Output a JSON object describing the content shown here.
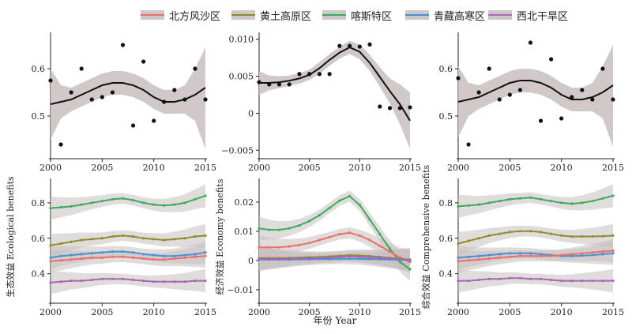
{
  "legend": {
    "items": [
      {
        "label": "北方风沙区",
        "color": "#e8706a"
      },
      {
        "label": "黄土高原区",
        "color": "#8e8d2b"
      },
      {
        "label": "喀斯特区",
        "color": "#3daa5c"
      },
      {
        "label": "青藏高寒区",
        "color": "#4a8fd3"
      },
      {
        "label": "西北干旱区",
        "color": "#a866b4"
      }
    ]
  },
  "labels": {
    "y_ecology": "生态效益 Ecological benefits",
    "y_economy": "经济效益 Economy benefits",
    "y_comprehensive": "综合效益 Comprehensive benefits",
    "x_year": "年份 Year"
  },
  "chart_data": [
    {
      "id": "ecology-overall",
      "type": "scatter",
      "xlim": [
        2000,
        2015
      ],
      "ylim": [
        0.42,
        0.67
      ],
      "xticks": [
        2000,
        2005,
        2010,
        2015
      ],
      "yticks": [
        0.5,
        0.6
      ],
      "points": {
        "x": [
          2000,
          2001,
          2002,
          2003,
          2004,
          2005,
          2006,
          2007,
          2008,
          2009,
          2010,
          2011,
          2012,
          2013,
          2014,
          2015
        ],
        "y": [
          0.575,
          0.44,
          0.55,
          0.6,
          0.535,
          0.54,
          0.55,
          0.65,
          0.48,
          0.615,
          0.49,
          0.53,
          0.555,
          0.535,
          0.6,
          0.535
        ]
      },
      "fit": {
        "x": [
          2000,
          2001,
          2002,
          2003,
          2004,
          2005,
          2006,
          2007,
          2008,
          2009,
          2010,
          2011,
          2012,
          2013,
          2014,
          2015
        ],
        "y": [
          0.525,
          0.53,
          0.535,
          0.545,
          0.555,
          0.565,
          0.57,
          0.57,
          0.565,
          0.555,
          0.54,
          0.53,
          0.53,
          0.535,
          0.545,
          0.56
        ],
        "lower": [
          0.45,
          0.495,
          0.51,
          0.52,
          0.53,
          0.54,
          0.545,
          0.545,
          0.54,
          0.53,
          0.515,
          0.505,
          0.505,
          0.505,
          0.49,
          0.43
        ],
        "upper": [
          0.6,
          0.565,
          0.56,
          0.57,
          0.58,
          0.59,
          0.595,
          0.595,
          0.59,
          0.58,
          0.565,
          0.555,
          0.555,
          0.565,
          0.6,
          0.645
        ]
      }
    },
    {
      "id": "economy-overall",
      "type": "scatter",
      "xlim": [
        2000,
        2015
      ],
      "ylim": [
        -0.0055,
        0.0105
      ],
      "xticks": [
        2000,
        2005,
        2010,
        2015
      ],
      "yticks": [
        -0.005,
        0,
        0.005,
        0.01
      ],
      "ytick_labels": [
        "−0.005",
        "0",
        "0.005",
        "0.010"
      ],
      "points": {
        "x": [
          2000,
          2001,
          2002,
          2003,
          2004,
          2005,
          2006,
          2007,
          2008,
          2009,
          2010,
          2011,
          2012,
          2013,
          2014,
          2015
        ],
        "y": [
          0.0042,
          0.0039,
          0.0039,
          0.0039,
          0.0053,
          0.0053,
          0.0053,
          0.0053,
          0.0091,
          0.0091,
          0.009,
          0.0093,
          0.0009,
          0.0007,
          0.0007,
          0.0008
        ]
      },
      "fit": {
        "x": [
          2000,
          2001,
          2002,
          2003,
          2004,
          2005,
          2006,
          2007,
          2008,
          2009,
          2010,
          2011,
          2012,
          2013,
          2014,
          2015
        ],
        "y": [
          0.0041,
          0.0041,
          0.0042,
          0.0044,
          0.0047,
          0.0052,
          0.0061,
          0.0072,
          0.0082,
          0.0089,
          0.0083,
          0.0068,
          0.0049,
          0.003,
          0.0012,
          -0.001
        ],
        "lower": [
          0.0025,
          0.0031,
          0.0034,
          0.0037,
          0.004,
          0.0045,
          0.0053,
          0.0064,
          0.0074,
          0.008,
          0.0073,
          0.0057,
          0.0036,
          0.0013,
          -0.0015,
          -0.0048
        ],
        "upper": [
          0.0057,
          0.0051,
          0.005,
          0.0051,
          0.0054,
          0.0059,
          0.0069,
          0.008,
          0.009,
          0.0098,
          0.0093,
          0.0079,
          0.0062,
          0.0047,
          0.0039,
          0.0028
        ]
      }
    },
    {
      "id": "comprehensive-overall",
      "type": "scatter",
      "xlim": [
        2000,
        2015
      ],
      "ylim": [
        0.42,
        0.67
      ],
      "xticks": [
        2000,
        2005,
        2010,
        2015
      ],
      "yticks": [
        0.5,
        0.6
      ],
      "points": {
        "x": [
          2000,
          2001,
          2002,
          2003,
          2004,
          2005,
          2006,
          2007,
          2008,
          2009,
          2010,
          2011,
          2012,
          2013,
          2014,
          2015
        ],
        "y": [
          0.58,
          0.44,
          0.55,
          0.6,
          0.535,
          0.545,
          0.555,
          0.655,
          0.49,
          0.62,
          0.495,
          0.54,
          0.555,
          0.535,
          0.6,
          0.535
        ]
      },
      "fit": {
        "x": [
          2000,
          2001,
          2002,
          2003,
          2004,
          2005,
          2006,
          2007,
          2008,
          2009,
          2010,
          2011,
          2012,
          2013,
          2014,
          2015
        ],
        "y": [
          0.53,
          0.535,
          0.54,
          0.55,
          0.56,
          0.57,
          0.575,
          0.575,
          0.57,
          0.56,
          0.545,
          0.535,
          0.535,
          0.54,
          0.55,
          0.565
        ],
        "lower": [
          0.455,
          0.5,
          0.515,
          0.525,
          0.535,
          0.545,
          0.55,
          0.55,
          0.545,
          0.535,
          0.52,
          0.51,
          0.51,
          0.51,
          0.495,
          0.435
        ],
        "upper": [
          0.605,
          0.57,
          0.565,
          0.575,
          0.585,
          0.595,
          0.6,
          0.6,
          0.595,
          0.585,
          0.57,
          0.56,
          0.56,
          0.57,
          0.605,
          0.65
        ]
      }
    },
    {
      "id": "ecology-regions",
      "type": "line",
      "xlim": [
        2000,
        2015
      ],
      "ylim": [
        0.26,
        0.92
      ],
      "xticks": [
        2000,
        2005,
        2010,
        2015
      ],
      "yticks": [
        0.4,
        0.6,
        0.8
      ],
      "x": [
        2000,
        2001,
        2002,
        2003,
        2004,
        2005,
        2006,
        2007,
        2008,
        2009,
        2010,
        2011,
        2012,
        2013,
        2014,
        2015
      ],
      "series": [
        {
          "name": "喀斯特区",
          "values": [
            0.77,
            0.775,
            0.78,
            0.79,
            0.8,
            0.81,
            0.82,
            0.825,
            0.815,
            0.8,
            0.79,
            0.785,
            0.79,
            0.8,
            0.82,
            0.84
          ]
        },
        {
          "name": "黄土高原区",
          "values": [
            0.56,
            0.57,
            0.58,
            0.59,
            0.595,
            0.6,
            0.61,
            0.615,
            0.61,
            0.6,
            0.595,
            0.59,
            0.595,
            0.6,
            0.61,
            0.615
          ]
        },
        {
          "name": "青藏高寒区",
          "values": [
            0.49,
            0.5,
            0.505,
            0.51,
            0.515,
            0.52,
            0.525,
            0.525,
            0.52,
            0.51,
            0.505,
            0.5,
            0.5,
            0.505,
            0.51,
            0.52
          ]
        },
        {
          "name": "北方风沙区",
          "values": [
            0.47,
            0.475,
            0.48,
            0.485,
            0.49,
            0.49,
            0.495,
            0.495,
            0.49,
            0.485,
            0.48,
            0.48,
            0.485,
            0.49,
            0.495,
            0.5
          ]
        },
        {
          "name": "西北干旱区",
          "values": [
            0.35,
            0.355,
            0.36,
            0.36,
            0.365,
            0.37,
            0.37,
            0.37,
            0.365,
            0.36,
            0.355,
            0.355,
            0.355,
            0.355,
            0.36,
            0.36
          ]
        }
      ]
    },
    {
      "id": "economy-regions",
      "type": "line",
      "xlim": [
        2000,
        2015
      ],
      "ylim": [
        -0.013,
        0.027
      ],
      "xticks": [
        2000,
        2005,
        2010,
        2015
      ],
      "yticks": [
        -0.01,
        0,
        0.01,
        0.02
      ],
      "ytick_labels": [
        "−0.01",
        "0",
        "0.01",
        "0.02"
      ],
      "x": [
        2000,
        2001,
        2002,
        2003,
        2004,
        2005,
        2006,
        2007,
        2008,
        2009,
        2010,
        2011,
        2012,
        2013,
        2014,
        2015
      ],
      "series": [
        {
          "name": "喀斯特区",
          "values": [
            0.011,
            0.0105,
            0.0105,
            0.011,
            0.012,
            0.0135,
            0.0155,
            0.018,
            0.0205,
            0.022,
            0.019,
            0.014,
            0.009,
            0.004,
            -0.0005,
            -0.003
          ]
        },
        {
          "name": "北方风沙区",
          "values": [
            0.0045,
            0.0045,
            0.0045,
            0.0048,
            0.0053,
            0.006,
            0.007,
            0.008,
            0.009,
            0.0095,
            0.0085,
            0.007,
            0.005,
            0.003,
            0.001,
            -0.0005
          ]
        },
        {
          "name": "黄土高原区",
          "values": [
            0.0008,
            0.0008,
            0.0008,
            0.0009,
            0.001,
            0.0011,
            0.0012,
            0.0014,
            0.0016,
            0.0018,
            0.0017,
            0.0015,
            0.0012,
            0.0009,
            0.0006,
            0.0003
          ]
        },
        {
          "name": "青藏高寒区",
          "values": [
            0.0003,
            0.0003,
            0.0003,
            0.0003,
            0.0004,
            0.0004,
            0.0005,
            0.0005,
            0.0006,
            0.0006,
            0.0006,
            0.0005,
            0.0004,
            0.0003,
            0.0002,
            0.0001
          ]
        },
        {
          "name": "西北干旱区",
          "values": [
            0.0005,
            0.0005,
            0.0005,
            0.0006,
            0.0007,
            0.0008,
            0.0009,
            0.001,
            0.0012,
            0.0014,
            0.0013,
            0.0011,
            0.0009,
            0.0007,
            0.0004,
            0.0002
          ]
        }
      ]
    },
    {
      "id": "comprehensive-regions",
      "type": "line",
      "xlim": [
        2000,
        2015
      ],
      "ylim": [
        0.26,
        0.92
      ],
      "xticks": [
        2000,
        2005,
        2010,
        2015
      ],
      "yticks": [
        0.4,
        0.6,
        0.8
      ],
      "x": [
        2000,
        2001,
        2002,
        2003,
        2004,
        2005,
        2006,
        2007,
        2008,
        2009,
        2010,
        2011,
        2012,
        2013,
        2014,
        2015
      ],
      "series": [
        {
          "name": "喀斯特区",
          "values": [
            0.78,
            0.785,
            0.79,
            0.8,
            0.81,
            0.82,
            0.825,
            0.83,
            0.82,
            0.81,
            0.8,
            0.795,
            0.8,
            0.81,
            0.825,
            0.84
          ]
        },
        {
          "name": "黄土高原区",
          "values": [
            0.57,
            0.585,
            0.6,
            0.615,
            0.625,
            0.635,
            0.64,
            0.64,
            0.635,
            0.625,
            0.615,
            0.61,
            0.61,
            0.61,
            0.612,
            0.615
          ]
        },
        {
          "name": "青藏高寒区",
          "values": [
            0.49,
            0.495,
            0.5,
            0.505,
            0.51,
            0.515,
            0.515,
            0.515,
            0.51,
            0.505,
            0.5,
            0.5,
            0.502,
            0.505,
            0.51,
            0.515
          ]
        },
        {
          "name": "北方风沙区",
          "values": [
            0.47,
            0.475,
            0.48,
            0.485,
            0.49,
            0.495,
            0.5,
            0.5,
            0.5,
            0.5,
            0.505,
            0.51,
            0.515,
            0.52,
            0.525,
            0.53
          ]
        },
        {
          "name": "西北干旱区",
          "values": [
            0.36,
            0.36,
            0.365,
            0.37,
            0.37,
            0.375,
            0.375,
            0.37,
            0.37,
            0.365,
            0.36,
            0.36,
            0.36,
            0.36,
            0.36,
            0.36
          ]
        }
      ]
    }
  ]
}
